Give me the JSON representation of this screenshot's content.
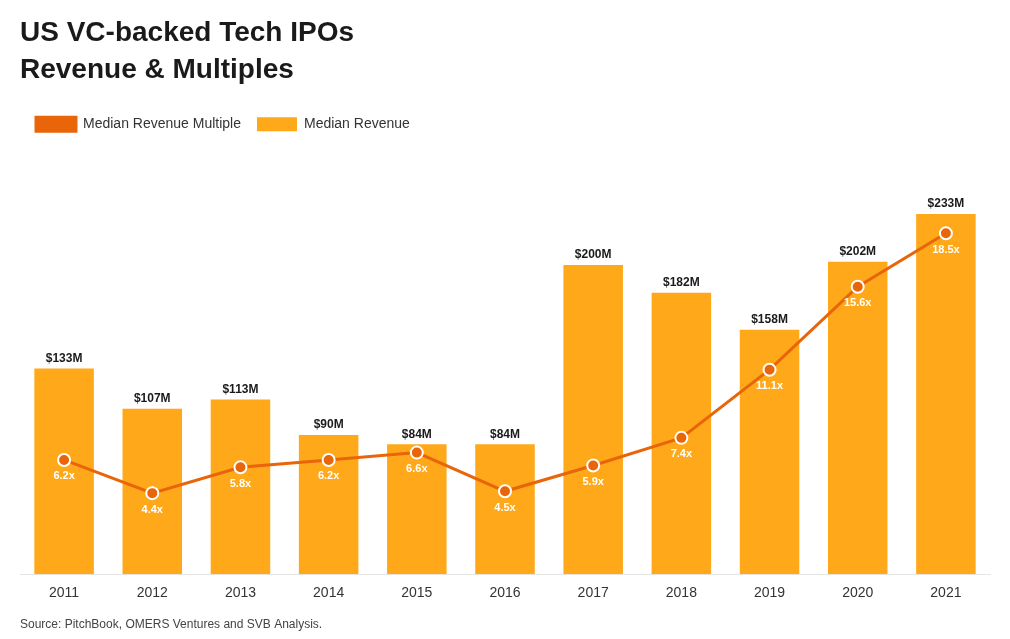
{
  "chart_data": {
    "type": "bar",
    "title": "US VC-backed Tech IPOs",
    "subtitle": "Revenue & Multiples",
    "annotations": [
      "Source: PitchBook, OMERS Ventures and SVB Analysis."
    ],
    "categories": [
      "2011",
      "2012",
      "2013",
      "2014",
      "2015",
      "2016",
      "2017",
      "2018",
      "2019",
      "2020",
      "2021"
    ],
    "series": [
      {
        "name": "Median Revenue Multiple",
        "type": "line",
        "axis": "y2",
        "color": "#E8650A",
        "marker": "circle",
        "values": [
          6.2,
          4.4,
          5.8,
          6.2,
          6.6,
          4.5,
          5.9,
          7.4,
          11.1,
          15.6,
          18.5
        ],
        "value_labels": [
          "6.2x",
          "4.4x",
          "5.8x",
          "6.2x",
          "6.6x",
          "4.5x",
          "5.9x",
          "7.4x",
          "11.1x",
          "15.6x",
          "18.5x"
        ]
      },
      {
        "name": "Median Revenue",
        "type": "bar",
        "color": "#FFA81A",
        "values": [
          133,
          107,
          113,
          90,
          84,
          84,
          200,
          182,
          158,
          202,
          233
        ],
        "value_labels": [
          "$133M",
          "$107M",
          "$113M",
          "$90M",
          "$84M",
          "$84M",
          "$200M",
          "$182M",
          "$158M",
          "$202M",
          "$233M"
        ]
      }
    ],
    "ylim": [
      0,
      280
    ],
    "y2lim": [
      0,
      23.5
    ],
    "tick_labels": "x",
    "grid": false,
    "legend": "top",
    "data_labels": true
  }
}
